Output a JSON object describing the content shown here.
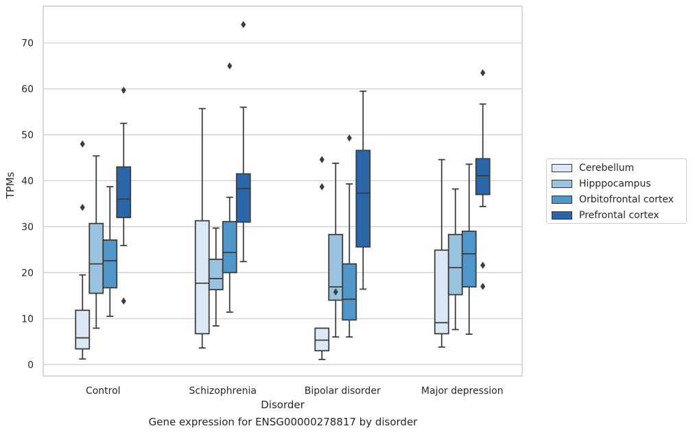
{
  "chart_data": {
    "type": "box",
    "xlabel": "Disorder",
    "ylabel": "TPMs",
    "ylim": [
      -2.5,
      78
    ],
    "yticks": [
      0,
      10,
      20,
      30,
      40,
      50,
      60,
      70
    ],
    "grid": "horizontal",
    "legend_position": "right",
    "categories": [
      "Control",
      "Schizophrenia",
      "Bipolar disorder",
      "Major depression"
    ],
    "series": [
      {
        "name": "Cerebellum",
        "color": "#dbe9f6",
        "boxes": [
          {
            "whislo": 1.2,
            "q1": 3.4,
            "med": 5.8,
            "q3": 11.8,
            "whishi": 19.5,
            "fliers": []
          },
          {
            "whislo": 3.6,
            "q1": 6.7,
            "med": 17.7,
            "q3": 31.3,
            "whishi": 55.7,
            "fliers": []
          },
          {
            "whislo": 1.1,
            "q1": 3.0,
            "med": 5.3,
            "q3": 7.9,
            "whishi": 7.9,
            "fliers": []
          },
          {
            "whislo": 3.8,
            "q1": 6.7,
            "med": 9.1,
            "q3": 24.9,
            "whishi": 44.6,
            "fliers": []
          }
        ]
      },
      {
        "name": "Hipppocampus",
        "color": "#99c3df",
        "boxes": [
          {
            "whislo": 7.9,
            "q1": 15.5,
            "med": 21.9,
            "q3": 30.7,
            "whishi": 45.4,
            "fliers": []
          },
          {
            "whislo": 8.4,
            "q1": 16.3,
            "med": 18.7,
            "q3": 22.9,
            "whishi": 29.7,
            "fliers": []
          },
          {
            "whislo": 6.0,
            "q1": 14.0,
            "med": 16.9,
            "q3": 28.3,
            "whishi": 43.8,
            "fliers": [
              15.8
            ]
          },
          {
            "whislo": 7.6,
            "q1": 15.2,
            "med": 21.1,
            "q3": 28.3,
            "whishi": 38.2,
            "fliers": []
          }
        ]
      },
      {
        "name": "Orbitofrontal cortex",
        "color": "#5096c8",
        "boxes": [
          {
            "whislo": 10.5,
            "q1": 16.7,
            "med": 22.6,
            "q3": 27.1,
            "whishi": 38.7,
            "fliers": []
          },
          {
            "whislo": 11.4,
            "q1": 20.0,
            "med": 24.4,
            "q3": 31.1,
            "whishi": 36.4,
            "fliers": []
          },
          {
            "whislo": 6.0,
            "q1": 9.7,
            "med": 14.2,
            "q3": 21.9,
            "whishi": 39.3,
            "fliers": []
          },
          {
            "whislo": 6.6,
            "q1": 16.9,
            "med": 24.1,
            "q3": 29.0,
            "whishi": 43.6,
            "fliers": []
          }
        ]
      },
      {
        "name": "Prefrontal cortex",
        "color": "#2a66a8",
        "boxes": [
          {
            "whislo": 25.9,
            "q1": 32.0,
            "med": 36.0,
            "q3": 43.0,
            "whishi": 52.5,
            "fliers": []
          },
          {
            "whislo": 22.4,
            "q1": 31.0,
            "med": 38.3,
            "q3": 41.5,
            "whishi": 56.0,
            "fliers": []
          },
          {
            "whislo": 16.4,
            "q1": 25.6,
            "med": 37.3,
            "q3": 46.6,
            "whishi": 59.5,
            "fliers": []
          },
          {
            "whislo": 34.4,
            "q1": 37.0,
            "med": 41.1,
            "q3": 44.8,
            "whishi": 56.7,
            "fliers": []
          }
        ]
      }
    ],
    "outliers": [
      {
        "category": 0,
        "series": 0,
        "value": 48.0
      },
      {
        "category": 0,
        "series": 0,
        "value": 34.2
      },
      {
        "category": 0,
        "series": 3,
        "value": 59.7
      },
      {
        "category": 0,
        "series": 3,
        "value": 13.8
      },
      {
        "category": 1,
        "series": 2,
        "value": 65.0
      },
      {
        "category": 1,
        "series": 3,
        "value": 74.0
      },
      {
        "category": 2,
        "series": 0,
        "value": 44.6
      },
      {
        "category": 2,
        "series": 0,
        "value": 38.7
      },
      {
        "category": 2,
        "series": 1,
        "value": 15.8
      },
      {
        "category": 2,
        "series": 2,
        "value": 49.3
      },
      {
        "category": 3,
        "series": 3,
        "value": 63.5
      },
      {
        "category": 3,
        "series": 3,
        "value": 21.6
      },
      {
        "category": 3,
        "series": 3,
        "value": 17.0
      }
    ]
  },
  "caption": "Gene expression for ENSG00000278817 by disorder"
}
